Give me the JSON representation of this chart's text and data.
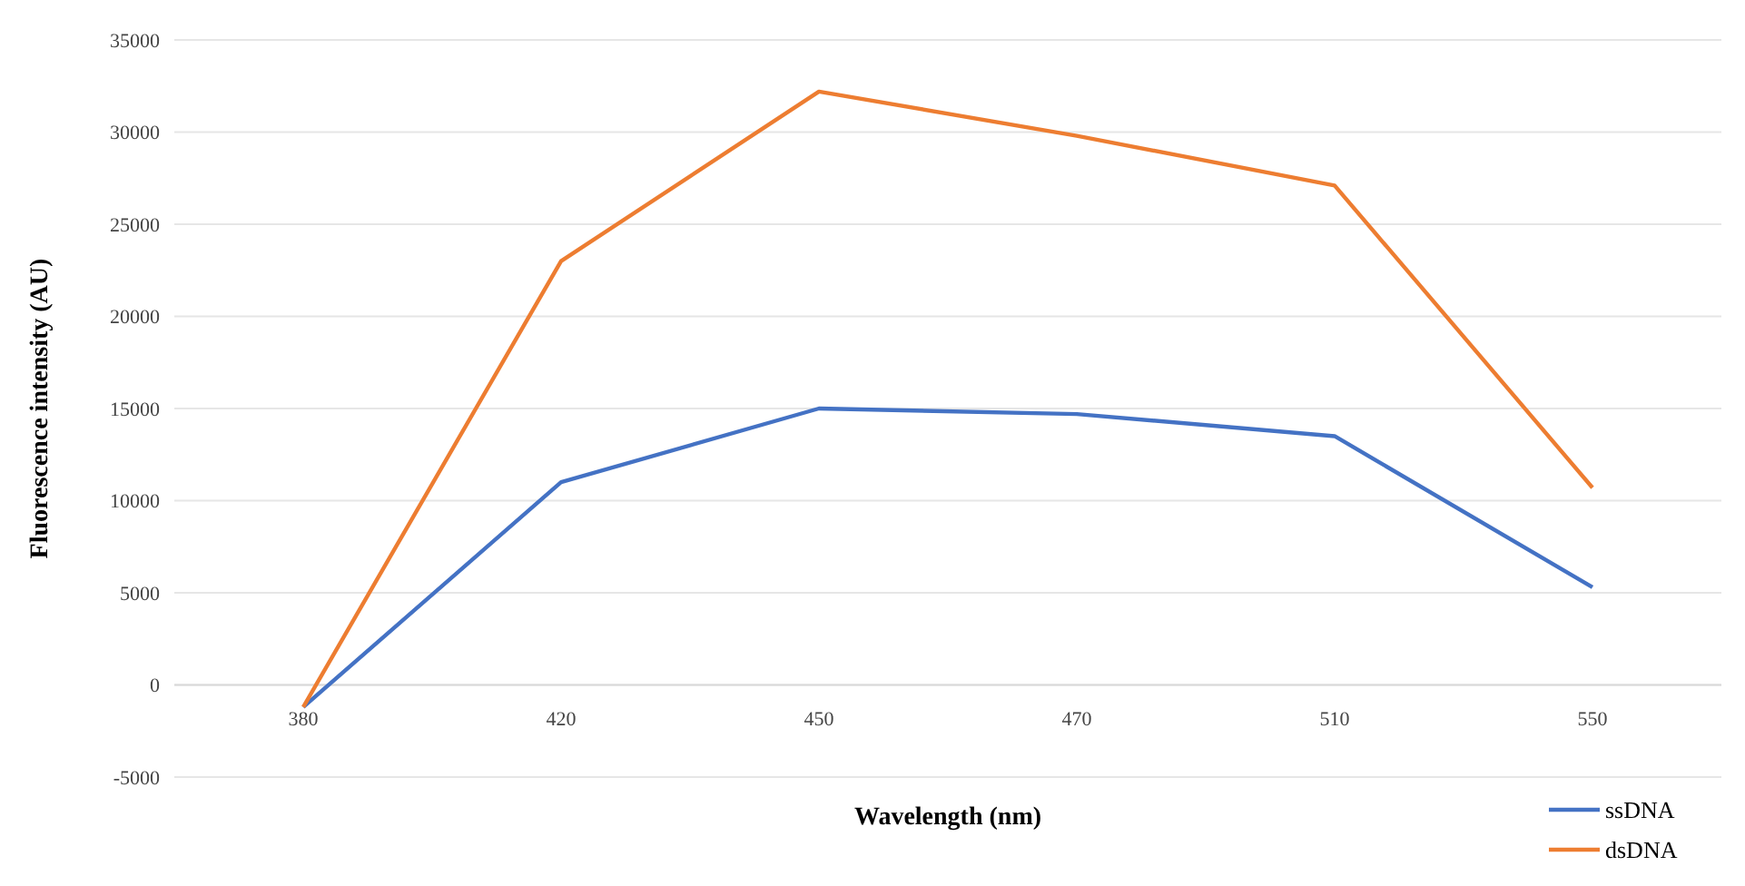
{
  "chart_data": {
    "type": "line",
    "xlabel": "Wavelength (nm)",
    "ylabel": "Fluorescence intensity (AU)",
    "categories": [
      "380",
      "420",
      "450",
      "470",
      "510",
      "550"
    ],
    "series": [
      {
        "name": "ssDNA",
        "color": "#4472c4",
        "values": [
          -1200,
          11000,
          15000,
          14700,
          13500,
          5300
        ]
      },
      {
        "name": "dsDNA",
        "color": "#ed7d31",
        "values": [
          -1200,
          23000,
          32200,
          29800,
          27100,
          10700
        ]
      }
    ],
    "ylim": [
      -5000,
      35000
    ],
    "yticks": [
      -5000,
      0,
      5000,
      10000,
      15000,
      20000,
      25000,
      30000,
      35000
    ],
    "grid": "y",
    "legend": "bottom right",
    "marker": "none",
    "line_style": "solid"
  }
}
